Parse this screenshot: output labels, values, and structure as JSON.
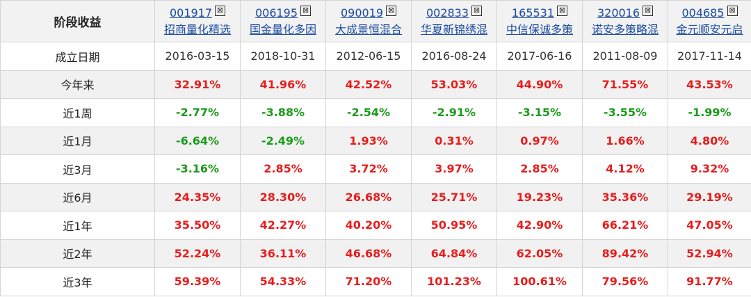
{
  "table": {
    "corner_label": "阶段收益",
    "funds": [
      {
        "code": "001917",
        "name": "招商量化精选"
      },
      {
        "code": "006195",
        "name": "国金量化多因"
      },
      {
        "code": "090019",
        "name": "大成景恒混合"
      },
      {
        "code": "002833",
        "name": "华夏新锦绣混"
      },
      {
        "code": "165531",
        "name": "中信保诚多策"
      },
      {
        "code": "320016",
        "name": "诺安多策略混"
      },
      {
        "code": "004685",
        "name": "金元顺安元启"
      }
    ],
    "close_glyph": "⊠",
    "inception": {
      "label": "成立日期",
      "dates": [
        "2016-03-15",
        "2018-10-31",
        "2012-06-15",
        "2016-08-24",
        "2017-06-16",
        "2011-08-09",
        "2017-11-14"
      ]
    },
    "rows": [
      {
        "label": "今年来",
        "values": [
          "32.91%",
          "41.96%",
          "42.52%",
          "53.03%",
          "44.90%",
          "71.55%",
          "43.53%"
        ]
      },
      {
        "label": "近1周",
        "values": [
          "-2.77%",
          "-3.88%",
          "-2.54%",
          "-2.91%",
          "-3.15%",
          "-3.55%",
          "-1.99%"
        ]
      },
      {
        "label": "近1月",
        "values": [
          "-6.64%",
          "-2.49%",
          "1.93%",
          "0.31%",
          "0.97%",
          "1.66%",
          "4.80%"
        ]
      },
      {
        "label": "近3月",
        "values": [
          "-3.16%",
          "2.85%",
          "3.72%",
          "3.97%",
          "2.85%",
          "4.12%",
          "9.32%"
        ]
      },
      {
        "label": "近6月",
        "values": [
          "24.35%",
          "28.30%",
          "26.68%",
          "25.71%",
          "19.23%",
          "35.36%",
          "29.19%"
        ]
      },
      {
        "label": "近1年",
        "values": [
          "35.50%",
          "42.27%",
          "40.20%",
          "50.95%",
          "42.90%",
          "66.21%",
          "47.05%"
        ]
      },
      {
        "label": "近2年",
        "values": [
          "52.24%",
          "36.11%",
          "46.68%",
          "64.84%",
          "62.05%",
          "89.42%",
          "52.94%"
        ]
      },
      {
        "label": "近3年",
        "values": [
          "59.39%",
          "54.33%",
          "71.20%",
          "101.23%",
          "100.61%",
          "79.56%",
          "91.77%"
        ]
      }
    ],
    "colors": {
      "positive": "#e81c1c",
      "negative": "#1a9a1a",
      "link": "#1a4aa3"
    }
  }
}
